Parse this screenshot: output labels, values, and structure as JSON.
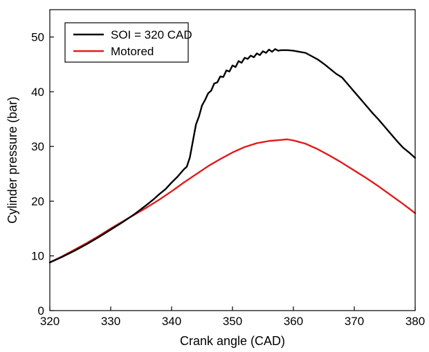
{
  "chart_data": {
    "type": "line",
    "xlabel": "Crank angle (CAD)",
    "ylabel": "Cylinder pressure (bar)",
    "xlim": [
      320,
      380
    ],
    "ylim": [
      0,
      55
    ],
    "xticks": [
      "320",
      "330",
      "340",
      "350",
      "360",
      "370",
      "380"
    ],
    "yticks": [
      "0",
      "10",
      "20",
      "30",
      "40",
      "50"
    ],
    "grid": false,
    "legend_position": "top-left",
    "series": [
      {
        "name": "SOI = 320 CAD",
        "color": "#000000",
        "x": [
          320,
          322,
          324,
          326,
          328,
          330,
          332,
          334,
          336,
          337,
          338,
          339,
          340,
          341,
          342,
          342.5,
          343,
          343.5,
          344,
          344.5,
          345,
          345.5,
          346,
          346.5,
          347,
          347.5,
          348,
          348.5,
          349,
          349.5,
          350,
          350.5,
          351,
          351.5,
          352,
          352.5,
          353,
          353.5,
          354,
          354.5,
          355,
          355.5,
          356,
          356.5,
          357,
          357.5,
          358,
          359,
          360,
          361,
          362,
          363,
          364,
          365,
          366,
          367,
          368,
          369,
          370,
          371,
          372,
          373,
          374,
          375,
          376,
          377,
          378,
          379,
          380
        ],
        "y": [
          8.8,
          9.8,
          10.9,
          12.1,
          13.4,
          14.8,
          16.2,
          17.7,
          19.4,
          20.3,
          21.3,
          22.2,
          23.4,
          24.5,
          25.8,
          26.3,
          28.0,
          31.0,
          34.0,
          35.5,
          37.5,
          38.5,
          39.7,
          40.2,
          41.5,
          41.7,
          42.8,
          42.7,
          43.9,
          43.7,
          44.8,
          44.5,
          45.6,
          45.3,
          46.2,
          46.0,
          46.6,
          46.3,
          47.0,
          46.7,
          47.4,
          47.1,
          47.7,
          47.3,
          47.8,
          47.5,
          47.6,
          47.6,
          47.5,
          47.3,
          47.1,
          46.5,
          45.9,
          45.1,
          44.2,
          43.3,
          42.6,
          41.3,
          40.0,
          38.7,
          37.4,
          36.1,
          34.9,
          33.6,
          32.3,
          31.0,
          29.8,
          28.9,
          27.9
        ]
      },
      {
        "name": "Motored",
        "color": "#e31a1c",
        "x": [
          320,
          322,
          324,
          326,
          328,
          330,
          332,
          334,
          336,
          338,
          340,
          342,
          344,
          346,
          348,
          350,
          352,
          354,
          356,
          358,
          359,
          360,
          362,
          364,
          366,
          368,
          370,
          372,
          374,
          376,
          378,
          380
        ],
        "y": [
          8.8,
          9.9,
          11.1,
          12.3,
          13.6,
          15.0,
          16.3,
          17.6,
          18.9,
          20.3,
          21.8,
          23.4,
          24.9,
          26.4,
          27.7,
          28.9,
          29.9,
          30.6,
          31.0,
          31.2,
          31.3,
          31.1,
          30.5,
          29.5,
          28.3,
          27.0,
          25.6,
          24.2,
          22.7,
          21.1,
          19.5,
          17.8
        ]
      }
    ]
  }
}
